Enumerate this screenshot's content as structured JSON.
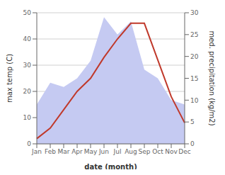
{
  "chart_data": {
    "type": "line",
    "categories": [
      "Jan",
      "Feb",
      "Mar",
      "Apr",
      "May",
      "Jun",
      "Jul",
      "Aug",
      "Sep",
      "Oct",
      "Nov",
      "Dec"
    ],
    "series": [
      {
        "type": "area",
        "axis": "y2",
        "color": "#c5caf2",
        "values": [
          9,
          14,
          13,
          15,
          19,
          29,
          25,
          28,
          17,
          15,
          10,
          9
        ]
      },
      {
        "type": "line",
        "color": "#c0392b",
        "values": [
          2,
          6,
          13,
          20,
          25,
          33,
          40,
          46,
          46,
          32,
          18,
          8
        ]
      }
    ],
    "xlabel": "date (month)",
    "ylabel": "max temp (C)",
    "y2label": "med. precipitation (kg/m2)",
    "ylim": [
      0,
      50
    ],
    "yticks": [
      0,
      10,
      20,
      30,
      40,
      50
    ],
    "y2lim": [
      0,
      30
    ],
    "y2ticks": [
      0,
      5,
      10,
      15,
      20,
      25,
      30
    ],
    "grid": true
  }
}
